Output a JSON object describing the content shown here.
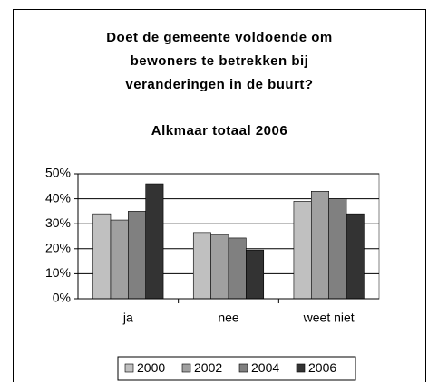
{
  "chart_data": {
    "type": "bar",
    "title": [
      "Doet de gemeente voldoende om",
      "bewoners te betrekken bij",
      "veranderingen in de buurt?"
    ],
    "subtitle": "Alkmaar totaal 2006",
    "categories": [
      "ja",
      "nee",
      "weet niet"
    ],
    "series": [
      {
        "name": "2000",
        "color": "#c0c0c0",
        "values": [
          34,
          26.5,
          39
        ]
      },
      {
        "name": "2002",
        "color": "#a0a0a0",
        "values": [
          31.5,
          25.5,
          43
        ]
      },
      {
        "name": "2004",
        "color": "#808080",
        "values": [
          35,
          24.3,
          40
        ]
      },
      {
        "name": "2006",
        "color": "#333333",
        "values": [
          46,
          19.5,
          34
        ]
      }
    ],
    "ylim": [
      0,
      50
    ],
    "yticks": [
      {
        "value": 0,
        "label": "0%"
      },
      {
        "value": 10,
        "label": "10%"
      },
      {
        "value": 20,
        "label": "20%"
      },
      {
        "value": 30,
        "label": "30%"
      },
      {
        "value": 40,
        "label": "40%"
      },
      {
        "value": 50,
        "label": "50%"
      }
    ],
    "grid": true,
    "legend": "bottom"
  }
}
